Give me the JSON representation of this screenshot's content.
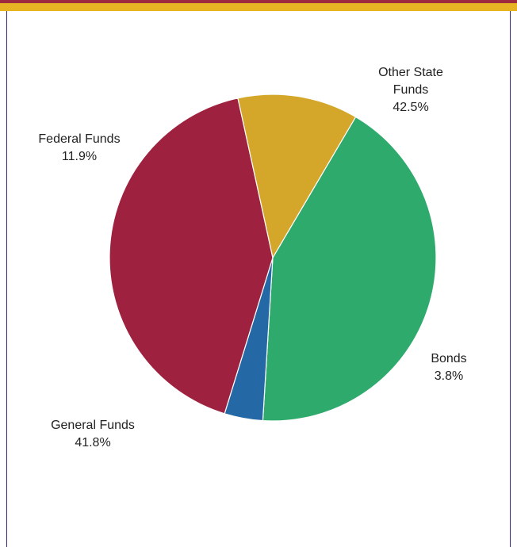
{
  "colors": {
    "top_stripe": "#9e2a3f",
    "top_band": "#e7b523",
    "border": "#3b2a7a",
    "slice_edge": "#ffffff"
  },
  "chart_data": {
    "type": "pie",
    "start_angle_deg": -59.5,
    "direction": "clockwise",
    "slices": [
      {
        "label_lines": [
          "Other State",
          "Funds"
        ],
        "percent_label": "42.5%",
        "value": 42.5,
        "color": "#2eaa6d",
        "icon": "pie-slice"
      },
      {
        "label_lines": [
          "Bonds"
        ],
        "percent_label": "3.8%",
        "value": 3.8,
        "color": "#2469a6",
        "icon": "pie-slice"
      },
      {
        "label_lines": [
          "General Funds"
        ],
        "percent_label": "41.8%",
        "value": 41.8,
        "color": "#9e223f",
        "icon": "pie-slice"
      },
      {
        "label_lines": [
          "Federal Funds"
        ],
        "percent_label": "11.9%",
        "value": 11.9,
        "color": "#d4a72b",
        "icon": "pie-slice"
      }
    ]
  }
}
